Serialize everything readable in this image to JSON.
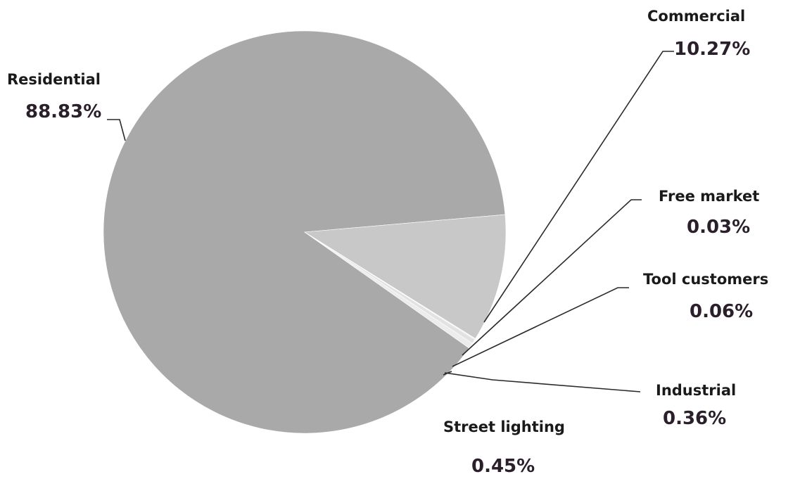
{
  "chart_data": {
    "type": "pie",
    "title": "",
    "slices": [
      {
        "label": "Residential",
        "value": 88.83,
        "value_label": "88.83%",
        "color": "#a9a9a9"
      },
      {
        "label": "Commercial",
        "value": 10.27,
        "value_label": "10.27%",
        "color": "#c8c8c8"
      },
      {
        "label": "Free market",
        "value": 0.03,
        "value_label": "0.03%",
        "color": "#d6d6d6"
      },
      {
        "label": "Tool customers",
        "value": 0.06,
        "value_label": "0.06%",
        "color": "#dcdcdc"
      },
      {
        "label": "Industrial",
        "value": 0.36,
        "value_label": "0.36%",
        "color": "#e2e2e2"
      },
      {
        "label": "Street lighting",
        "value": 0.45,
        "value_label": "0.45%",
        "color": "#ececec"
      }
    ]
  }
}
